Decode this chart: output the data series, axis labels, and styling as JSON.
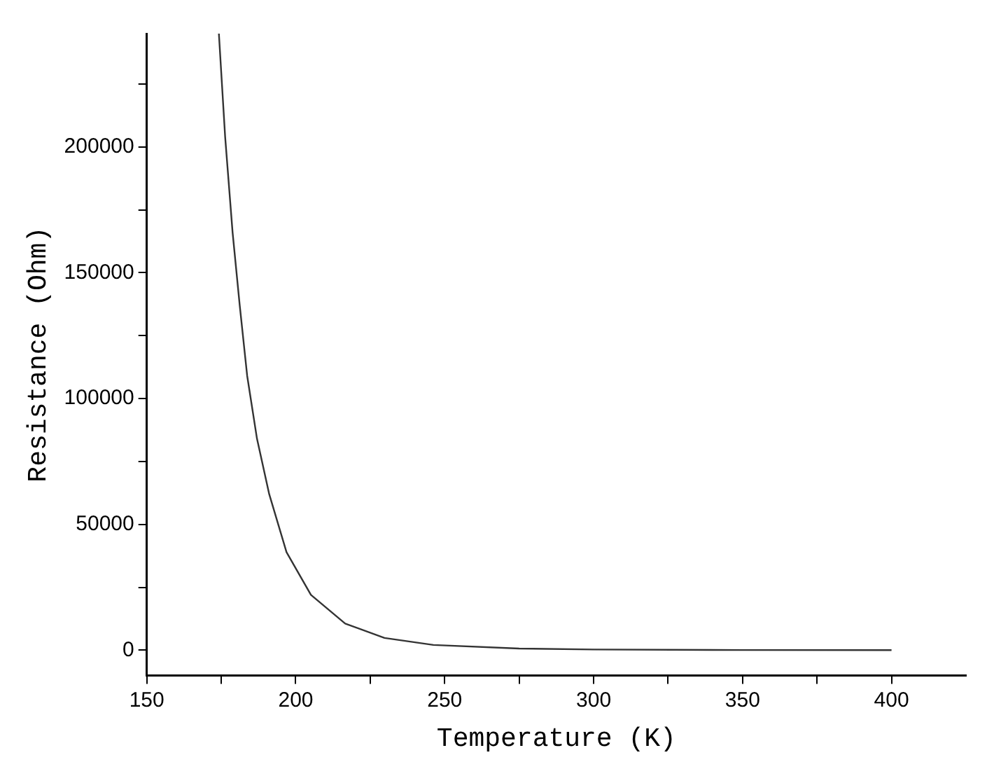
{
  "chart_data": {
    "type": "line",
    "xlabel": "Temperature (K)",
    "ylabel": "Resistance (Ohm)",
    "xlim": [
      150,
      425
    ],
    "ylim": [
      -10000,
      245000
    ],
    "xticks": [
      150,
      {
        "value": 175,
        "label": null
      },
      200,
      {
        "value": 225,
        "label": null
      },
      250,
      {
        "value": 275,
        "label": null
      },
      300,
      {
        "value": 325,
        "label": null
      },
      350,
      {
        "value": 375,
        "label": null
      },
      400
    ],
    "yticks": [
      0,
      {
        "value": 25000,
        "label": null
      },
      50000,
      {
        "value": 75000,
        "label": null
      },
      100000,
      {
        "value": 125000,
        "label": null
      },
      150000,
      {
        "value": 175000,
        "label": null
      },
      200000,
      {
        "value": 225000,
        "label": null
      }
    ],
    "grid": false,
    "legend": false,
    "marker": "none",
    "line_style": "solid",
    "series": [
      {
        "color": "#333333",
        "x": [
          174.2,
          176.3,
          178.8,
          181.2,
          183.7,
          187.0,
          191.1,
          196.9,
          205.1,
          216.6,
          229.8,
          246.2,
          275,
          300,
          350,
          400
        ],
        "values": [
          245000,
          204000,
          166000,
          137000,
          109000,
          84000,
          62000,
          39000,
          22000,
          10600,
          4900,
          2100,
          700,
          300,
          100,
          50
        ]
      }
    ]
  }
}
